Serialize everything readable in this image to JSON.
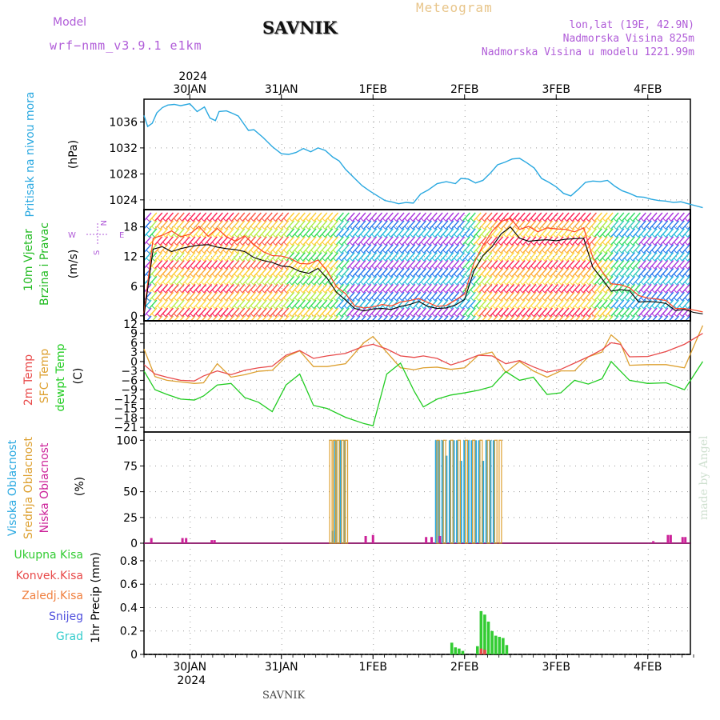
{
  "header": {
    "model_label": "Model",
    "model_name": "wrf−nmm_v3.9.1  e1km",
    "station": "SAVNIK",
    "meteogram_label": "Meteogram",
    "coords": "lon,lat (19E, 42.9N)",
    "altitude": "Nadmorska Visina 825m",
    "model_altitude": "Nadmorska Visina u modelu 1221.99m"
  },
  "watermark": "made by Angel",
  "footer": {
    "station": "SAVNIK"
  },
  "colors": {
    "pressure": "#29a8e0",
    "temp2m": "#e84a4a",
    "sfc_temp": "#dda030",
    "dewpt": "#22cc22",
    "high_cloud": "#29a8e0",
    "mid_cloud": "#dda030",
    "low_cloud": "#cc2299",
    "total_precip": "#33cc33",
    "conv_precip": "#e84a4a",
    "frozen_precip": "#f08040",
    "snow": "#5050dd",
    "hail": "#33cccc",
    "wind_label": "#22bb22",
    "wind_dir_label": "#b05cd8"
  },
  "chart_data": [
    {
      "type": "line",
      "panel": "pressure",
      "ylabel": [
        "Pritisak na nivou mora",
        "(hPa)"
      ],
      "yticks": [
        1024,
        1028,
        1032,
        1036
      ],
      "ylim": [
        1022.5,
        1039.5
      ],
      "x_range_days": [
        0,
        6.1
      ],
      "x_date_labels": {
        "top": [
          "30JAN",
          "31JAN",
          "1FEB",
          "2FEB",
          "3FEB",
          "4FEB"
        ],
        "year": "2024"
      },
      "grid": true,
      "x": [
        0,
        0.04,
        0.09,
        0.14,
        0.2,
        0.26,
        0.33,
        0.4,
        0.5,
        0.58,
        0.66,
        0.72,
        0.78,
        0.82,
        0.9,
        0.97,
        1.03,
        1.08,
        1.14,
        1.2,
        1.3,
        1.4,
        1.5,
        1.58,
        1.66,
        1.74,
        1.82,
        1.9,
        1.98,
        2.06,
        2.13,
        2.2,
        2.3,
        2.38,
        2.46,
        2.55,
        2.63,
        2.7,
        2.78,
        2.86,
        2.94,
        3.02,
        3.1,
        3.2,
        3.3,
        3.4,
        3.46,
        3.54,
        3.62,
        3.7,
        3.78,
        3.86,
        3.94,
        4.02,
        4.1,
        4.18,
        4.26,
        4.34,
        4.42,
        4.5,
        4.58,
        4.66,
        4.74,
        4.82,
        4.9,
        4.98,
        5.06,
        5.14,
        5.22,
        5.3,
        5.38,
        5.46,
        5.54,
        5.62,
        5.7,
        5.78,
        5.86,
        5.94,
        6.02,
        6.1
      ],
      "series": [
        {
          "values": [
            1037.0,
            1035.3,
            1035.8,
            1037.4,
            1038.2,
            1038.6,
            1038.7,
            1038.5,
            1038.8,
            1037.6,
            1038.3,
            1036.6,
            1036.2,
            1037.6,
            1037.7,
            1037.3,
            1036.9,
            1035.9,
            1034.7,
            1034.8,
            1033.6,
            1032.2,
            1031.1,
            1031.0,
            1031.3,
            1031.9,
            1031.4,
            1032.0,
            1031.6,
            1030.6,
            1030.0,
            1028.7,
            1027.3,
            1026.2,
            1025.4,
            1024.6,
            1023.9,
            1023.7,
            1023.4,
            1023.6,
            1023.5,
            1024.9,
            1025.5,
            1026.5,
            1026.8,
            1026.5,
            1027.3,
            1027.2,
            1026.6,
            1027.0,
            1028.1,
            1029.4,
            1029.8,
            1030.3,
            1030.4,
            1029.7,
            1028.9,
            1027.3,
            1026.7,
            1026.0,
            1025.0,
            1024.6,
            1025.6,
            1026.7,
            1026.9,
            1026.8,
            1027.0,
            1026.1,
            1025.4,
            1025.0,
            1024.5,
            1024.4,
            1024.1,
            1023.9,
            1023.8,
            1023.6,
            1023.7,
            1023.4,
            1023.1,
            1022.8
          ]
        }
      ]
    },
    {
      "type": "line",
      "panel": "wind",
      "ylabel": [
        "10m Vjetar",
        "Brzina i Pravac",
        "(m/s)"
      ],
      "direction_key": {
        "n": "N",
        "e": "E",
        "s": "S",
        "w": "W"
      },
      "yticks": [
        0,
        6,
        12,
        18
      ],
      "ylim": [
        -1,
        21.5
      ],
      "grid": true,
      "x": [
        0,
        0.1,
        0.2,
        0.3,
        0.4,
        0.5,
        0.6,
        0.7,
        0.8,
        0.9,
        1.0,
        1.1,
        1.2,
        1.3,
        1.4,
        1.5,
        1.6,
        1.7,
        1.8,
        1.9,
        2.0,
        2.1,
        2.2,
        2.3,
        2.4,
        2.5,
        2.6,
        2.7,
        2.8,
        2.9,
        3.0,
        3.1,
        3.2,
        3.3,
        3.4,
        3.5,
        3.6,
        3.7,
        3.8,
        3.9,
        4.0,
        4.1,
        4.2,
        4.3,
        4.4,
        4.5,
        4.6,
        4.7,
        4.8,
        4.9,
        5.0,
        5.1,
        5.2,
        5.3,
        5.4,
        5.5,
        5.6,
        5.7,
        5.8,
        5.9,
        6.0,
        6.1
      ],
      "series": [
        {
          "name": "speed",
          "values": [
            0,
            13.5,
            14.0,
            13.0,
            13.6,
            14.0,
            14.3,
            14.4,
            13.9,
            13.6,
            13.4,
            13.0,
            11.8,
            11.2,
            10.8,
            10.1,
            9.9,
            9.0,
            8.6,
            9.6,
            7.6,
            4.8,
            3.2,
            1.5,
            1.0,
            1.4,
            1.5,
            1.3,
            1.9,
            2.3,
            2.9,
            1.9,
            1.5,
            1.6,
            2.2,
            3.3,
            9.0,
            12.2,
            14.0,
            16.6,
            18.0,
            15.7,
            15.1,
            15.3,
            15.4,
            15.2,
            15.5,
            15.6,
            15.7,
            9.8,
            7.5,
            5.0,
            5.3,
            5.1,
            2.8,
            2.9,
            2.8,
            2.5,
            1.1,
            1.3,
            0.7,
            0.4
          ]
        },
        {
          "name": "gust",
          "values": [
            0.5,
            15.7,
            16.3,
            17.2,
            16.0,
            16.5,
            18.1,
            16.1,
            17.7,
            16.0,
            15.1,
            16.2,
            14.4,
            13.0,
            12.2,
            12.1,
            11.6,
            10.6,
            10.5,
            11.3,
            9.1,
            5.9,
            4.5,
            2.0,
            1.6,
            1.8,
            2.3,
            2.0,
            2.8,
            3.1,
            3.5,
            2.7,
            1.9,
            2.1,
            3.2,
            4.4,
            10.6,
            14.2,
            17.1,
            19.1,
            19.8,
            17.5,
            18.1,
            17.0,
            17.8,
            17.6,
            17.5,
            17.0,
            17.8,
            11.8,
            9.0,
            6.5,
            6.3,
            5.7,
            4.1,
            3.6,
            3.4,
            3.1,
            1.5,
            1.5,
            1.2,
            0.8
          ]
        }
      ]
    },
    {
      "type": "line",
      "panel": "temperature",
      "ylabel": [
        "2m Temp",
        "SFC Temp",
        "dewpt Temp",
        "(C)"
      ],
      "yticks": [
        12,
        9,
        6,
        3,
        0,
        -3,
        -6,
        -9,
        -12,
        -15,
        -18,
        -21
      ],
      "ylim": [
        -22.5,
        13
      ],
      "grid": true,
      "x": [
        0,
        0.12,
        0.25,
        0.4,
        0.55,
        0.65,
        0.8,
        0.95,
        1.1,
        1.25,
        1.4,
        1.55,
        1.7,
        1.85,
        2.0,
        2.2,
        2.4,
        2.5,
        2.65,
        2.8,
        2.95,
        3.05,
        3.2,
        3.35,
        3.5,
        3.65,
        3.8,
        3.95,
        4.1,
        4.25,
        4.4,
        4.55,
        4.7,
        4.85,
        5.0,
        5.1,
        5.2,
        5.3,
        5.5,
        5.7,
        5.9,
        6.1
      ],
      "series": [
        {
          "name": "2m Temp",
          "values": [
            -1.0,
            -4.0,
            -5.0,
            -6.0,
            -6.2,
            -4.6,
            -3.0,
            -4.2,
            -2.8,
            -2.0,
            -1.5,
            2.0,
            3.5,
            1.0,
            1.8,
            2.6,
            4.9,
            5.5,
            4.0,
            1.8,
            1.3,
            1.8,
            1.0,
            -1.1,
            0.3,
            2.0,
            1.8,
            -0.7,
            0.3,
            -1.7,
            -3.4,
            -2.5,
            -0.5,
            1.5,
            3.8,
            6.0,
            5.5,
            1.5,
            1.6,
            3.2,
            5.5,
            9.0
          ]
        },
        {
          "name": "SFC Temp",
          "values": [
            4.0,
            -4.8,
            -6.0,
            -6.5,
            -7.0,
            -6.8,
            -0.7,
            -5.0,
            -4.2,
            -3.1,
            -2.8,
            1.5,
            3.4,
            -1.6,
            -1.6,
            -0.7,
            6.0,
            8.0,
            3.0,
            -2.0,
            -2.6,
            -2.0,
            -1.8,
            -2.5,
            -2.0,
            2.0,
            3.0,
            -3.5,
            0.0,
            -3.0,
            -5.0,
            -3.0,
            -3.0,
            1.5,
            3.0,
            8.5,
            6.0,
            -1.2,
            -1.0,
            -1.0,
            -2.0,
            11.5
          ]
        },
        {
          "name": "dewpt Temp",
          "values": [
            -3.0,
            -9.0,
            -10.5,
            -12.0,
            -12.3,
            -11.0,
            -7.5,
            -7.0,
            -11.5,
            -13.0,
            -16.0,
            -7.5,
            -4.0,
            -14.0,
            -15.0,
            -17.8,
            -19.8,
            -20.5,
            -4.0,
            -0.5,
            -9.5,
            -14.5,
            -12.0,
            -10.7,
            -10.0,
            -9.2,
            -8.0,
            -3.2,
            -6.0,
            -5.0,
            -10.5,
            -10.0,
            -6.0,
            -7.2,
            -5.5,
            0.0,
            -3.0,
            -6.0,
            -7.0,
            -6.8,
            -9.0,
            0.0
          ]
        }
      ]
    },
    {
      "type": "bar",
      "panel": "clouds",
      "ylabel": [
        "Visoka Oblacnost",
        "Srednja Oblacnost",
        "Niska Oblacnost",
        "(%)"
      ],
      "yticks": [
        0,
        25,
        50,
        75,
        100
      ],
      "ylim": [
        0,
        108
      ],
      "grid": true,
      "series": [
        {
          "name": "Visoka Oblacnost",
          "x": [
            2.06,
            2.09,
            2.14,
            2.19,
            3.19,
            3.22,
            3.26,
            3.3,
            3.34,
            3.38,
            3.42,
            3.46,
            3.5,
            3.54,
            3.58,
            3.62,
            3.66,
            3.7,
            3.74,
            3.78,
            3.82
          ],
          "values": [
            12,
            100,
            100,
            100,
            100,
            100,
            100,
            85,
            100,
            100,
            100,
            80,
            100,
            100,
            100,
            100,
            100,
            80,
            100,
            100,
            100
          ]
        },
        {
          "name": "Srednja Oblacnost",
          "x": [
            2.04,
            2.08,
            2.12,
            2.17,
            2.21,
            3.21,
            3.28,
            3.36,
            3.44,
            3.52,
            3.6,
            3.68,
            3.76,
            3.84,
            3.89
          ],
          "values": [
            100,
            100,
            100,
            100,
            100,
            100,
            100,
            100,
            100,
            100,
            100,
            100,
            100,
            100,
            100
          ]
        },
        {
          "name": "Niska Oblacnost",
          "x": [
            0.08,
            0.42,
            0.46,
            0.74,
            0.77,
            2.42,
            2.5,
            3.08,
            3.14,
            3.23,
            5.56,
            5.72,
            5.75,
            5.88,
            5.91
          ],
          "values": [
            5,
            5,
            5,
            3,
            3,
            7,
            8,
            6,
            6,
            7,
            2,
            8,
            8,
            6,
            6
          ]
        }
      ]
    },
    {
      "type": "bar",
      "panel": "precipitation",
      "ylabel": "1hr Precip (mm)",
      "legend": [
        "Ukupna  Kisa",
        "Konvek.Kisa",
        "Zaledj.Kisa",
        "Snijeg",
        "Grad"
      ],
      "yticks": [
        0,
        0.2,
        0.4,
        0.6,
        0.8
      ],
      "ylim": [
        0,
        0.95
      ],
      "grid": true,
      "x_date_labels": {
        "bottom": [
          "30JAN",
          "31JAN",
          "1FEB",
          "2FEB",
          "3FEB",
          "4FEB"
        ],
        "year": "2024"
      },
      "series": [
        {
          "name": "Ukupna  Kisa",
          "x": [
            3.36,
            3.4,
            3.44,
            3.48,
            3.64,
            3.68,
            3.72,
            3.76,
            3.8,
            3.84,
            3.88,
            3.92,
            3.96
          ],
          "values": [
            0.1,
            0.06,
            0.05,
            0.03,
            0.07,
            0.37,
            0.34,
            0.28,
            0.2,
            0.16,
            0.15,
            0.14,
            0.08
          ]
        },
        {
          "name": "Konvek.Kisa",
          "x": [
            3.68,
            3.72
          ],
          "values": [
            0.05,
            0.04
          ]
        }
      ]
    }
  ]
}
